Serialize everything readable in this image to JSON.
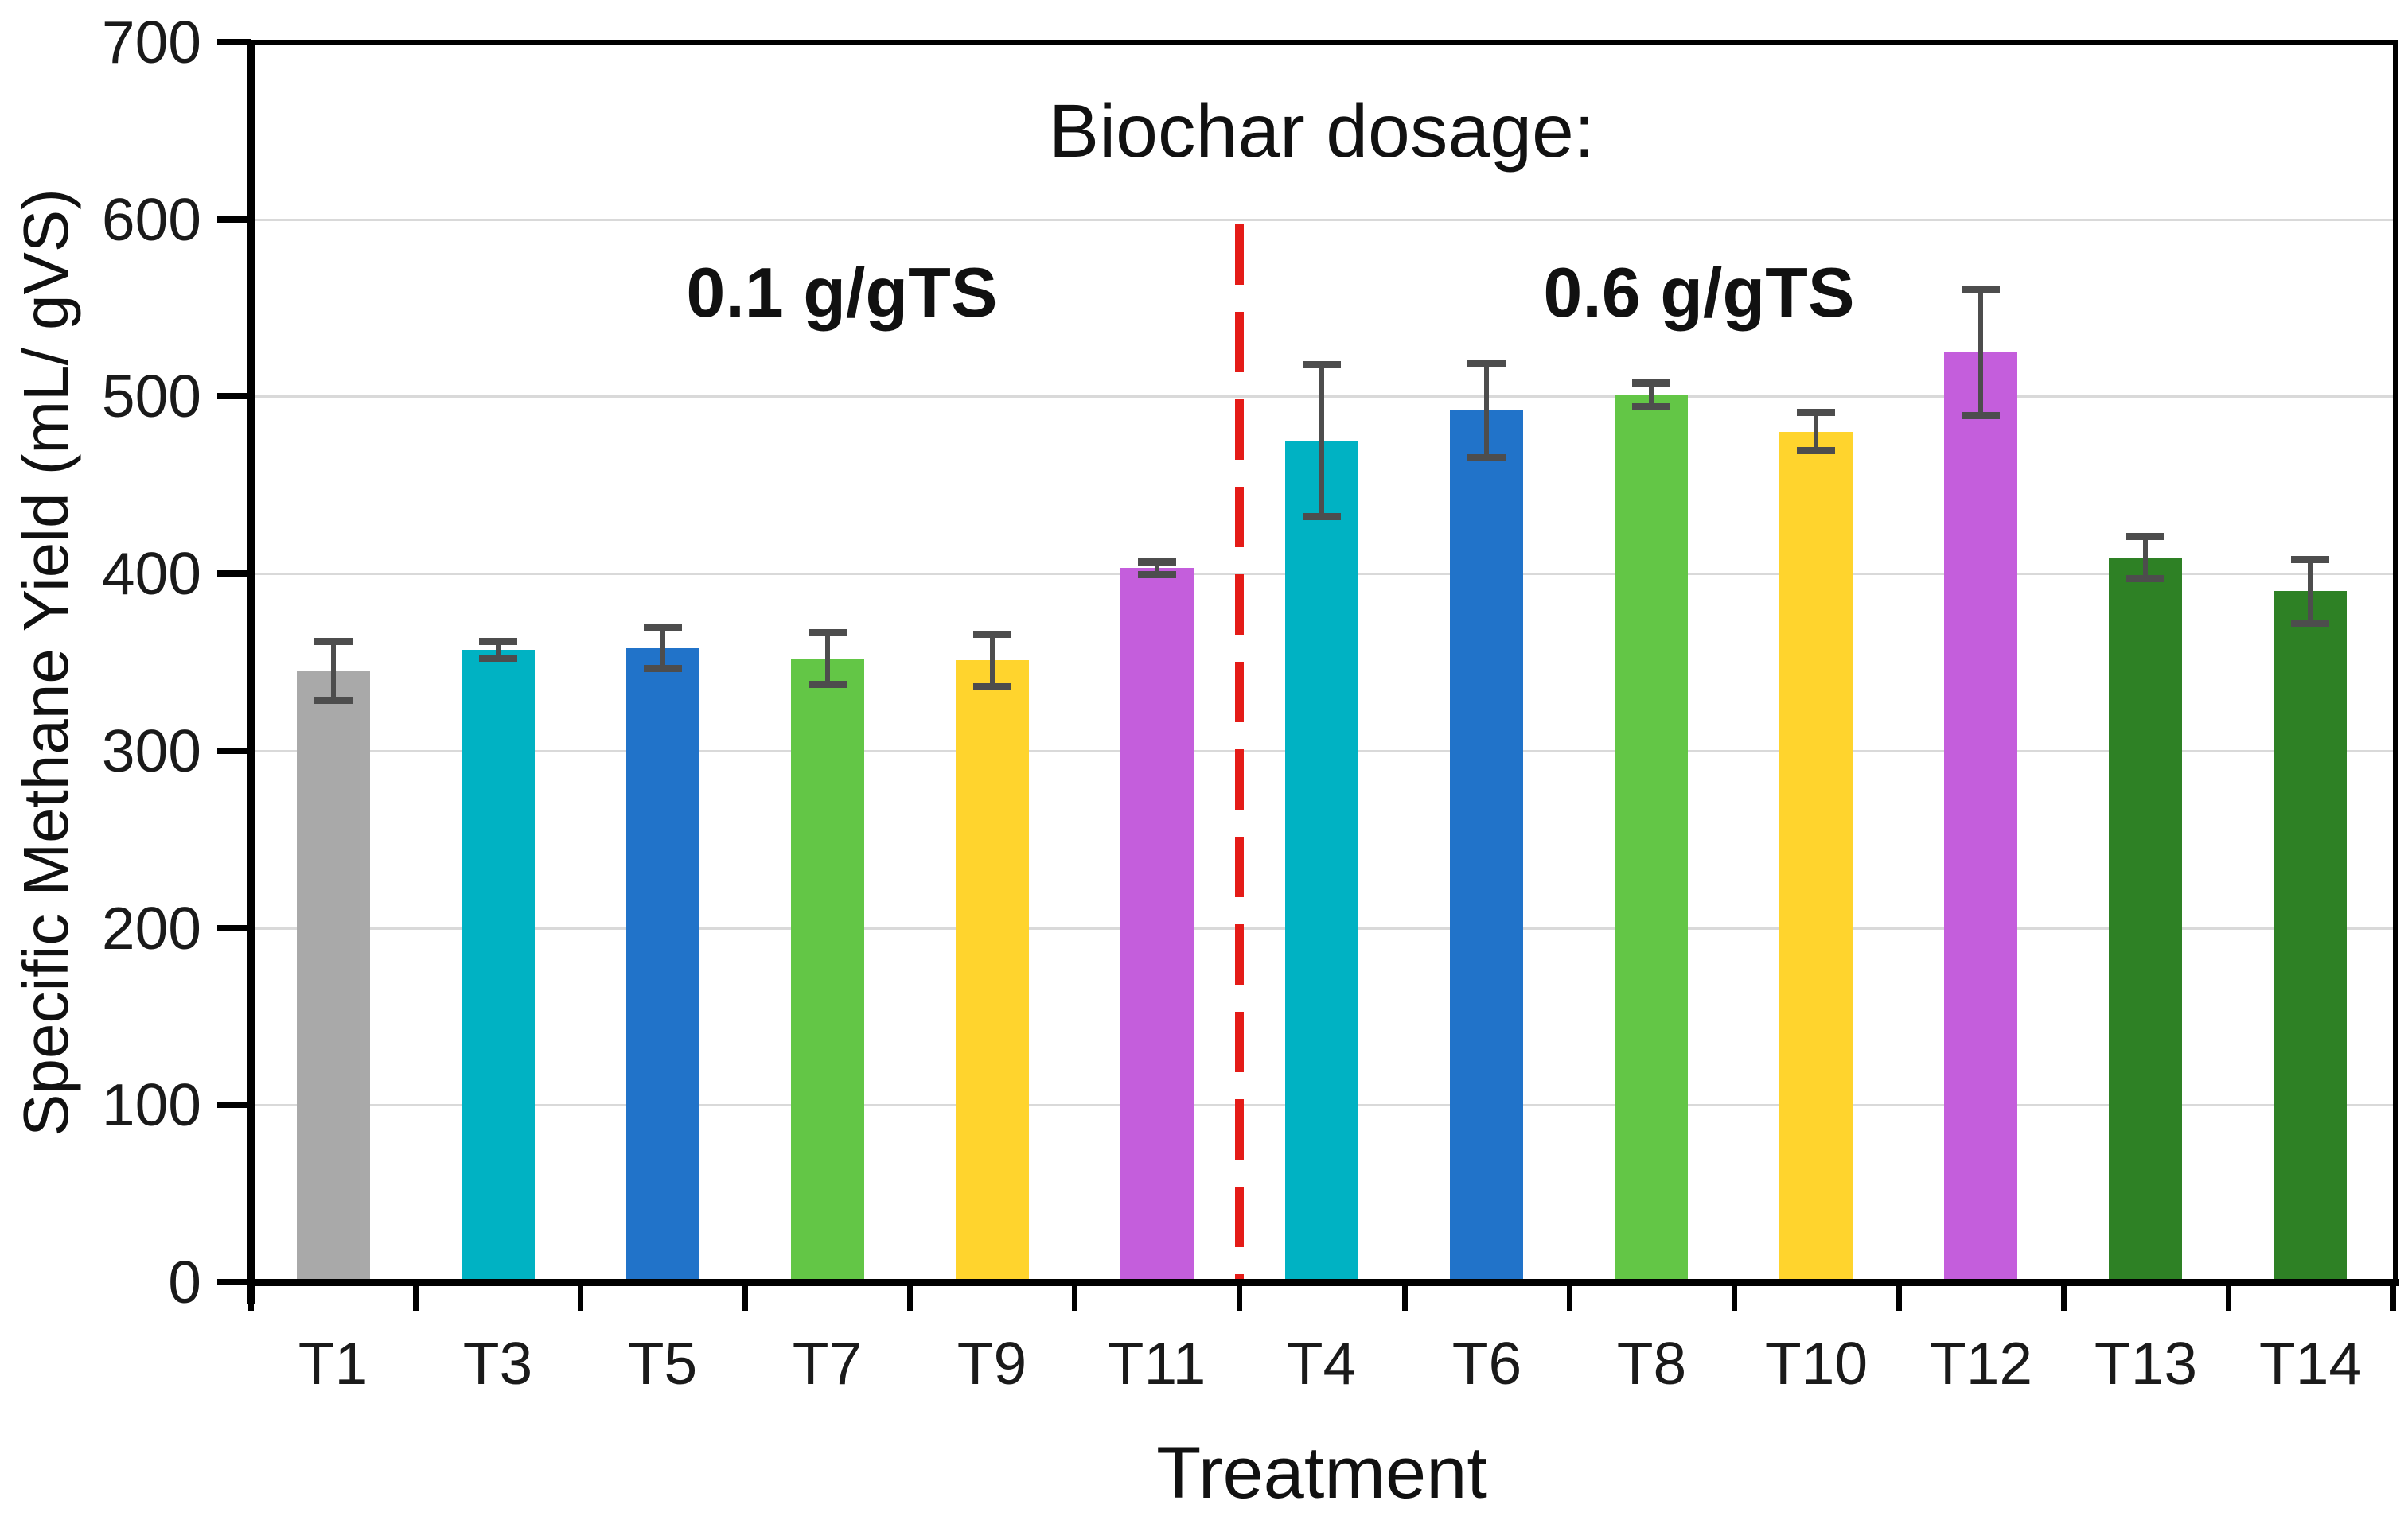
{
  "title": "Biochar dosage:",
  "annotations": {
    "left_group_label": "0.1 g/gTS",
    "right_group_label": "0.6 g/gTS"
  },
  "axes": {
    "y_title": "Specific Methane Yield (mL/ gVS)",
    "x_title": "Treatment",
    "y_ticks": [
      0,
      100,
      200,
      300,
      400,
      500,
      600,
      700
    ]
  },
  "colors": {
    "gray": "#a9a9a9",
    "teal": "#00b2c3",
    "blue": "#2173c9",
    "green": "#63c646",
    "yellow": "#ffd42d",
    "magenta": "#c45edc",
    "dark_green": "#2e8125",
    "divider_red": "#e41b17",
    "gridline": "#d9d9d9",
    "axis": "#000000",
    "error_bar": "#4d4d4d"
  },
  "chart_data": {
    "type": "bar",
    "title": "Biochar dosage:",
    "xlabel": "Treatment",
    "ylabel": "Specific Methane Yield (mL/ gVS)",
    "ylim": [
      0,
      700
    ],
    "y_tick_step": 100,
    "grid": true,
    "legend": "none",
    "categories": [
      "T1",
      "T3",
      "T5",
      "T7",
      "T9",
      "T11",
      "T4",
      "T6",
      "T8",
      "T10",
      "T12",
      "T13",
      "T14"
    ],
    "values": [
      345,
      357,
      358,
      352,
      351,
      403,
      475,
      492,
      501,
      480,
      525,
      409,
      390
    ],
    "error_bars": [
      17,
      5,
      12,
      15,
      15,
      4,
      43,
      27,
      7,
      11,
      36,
      12,
      18
    ],
    "bar_colors": [
      "#a9a9a9",
      "#00b2c3",
      "#2173c9",
      "#63c646",
      "#ffd42d",
      "#c45edc",
      "#00b2c3",
      "#2173c9",
      "#63c646",
      "#ffd42d",
      "#c45edc",
      "#2e8125",
      "#2e8125"
    ],
    "groups": [
      {
        "label": "0.1 g/gTS",
        "categories": [
          "T1",
          "T3",
          "T5",
          "T7",
          "T9",
          "T11"
        ]
      },
      {
        "label": "0.6 g/gTS",
        "categories": [
          "T4",
          "T6",
          "T8",
          "T10",
          "T12",
          "T13",
          "T14"
        ]
      }
    ],
    "divider": {
      "style": "red-dashed-vertical-line",
      "between": [
        "T11",
        "T4"
      ]
    }
  }
}
